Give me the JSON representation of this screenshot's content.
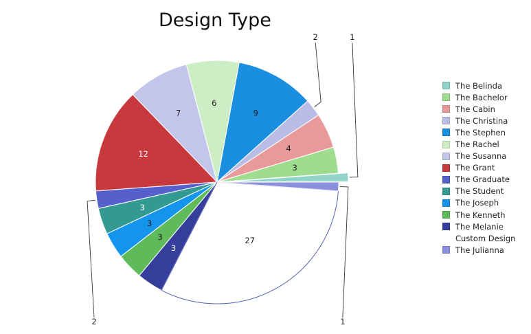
{
  "chart_data": {
    "type": "pie",
    "title": "Design Type",
    "slices": [
      {
        "label": "The Belinda",
        "value": 1,
        "color": "#8fd3c9",
        "exploded": true
      },
      {
        "label": "The Bachelor",
        "value": 3,
        "color": "#9fdc8f"
      },
      {
        "label": "The Cabin",
        "value": 4,
        "color": "#e89a9a"
      },
      {
        "label": "The Christina",
        "value": 2,
        "color": "#b9bde6"
      },
      {
        "label": "The Stephen",
        "value": 9,
        "color": "#1a8fe0"
      },
      {
        "label": "The Rachel",
        "value": 6,
        "color": "#cdeec4"
      },
      {
        "label": "The Susanna",
        "value": 7,
        "color": "#c3c6ea"
      },
      {
        "label": "The Grant",
        "value": 12,
        "color": "#c7393c"
      },
      {
        "label": "The Graduate",
        "value": 2,
        "color": "#5560cc"
      },
      {
        "label": "The Student",
        "value": 3,
        "color": "#339a92"
      },
      {
        "label": "The Joseph",
        "value": 3,
        "color": "#1594ec"
      },
      {
        "label": "The Kenneth",
        "value": 3,
        "color": "#5fba5a"
      },
      {
        "label": "The Melanie",
        "value": 3,
        "color": "#353e9a"
      },
      {
        "label": "Custom Design",
        "value": 27,
        "color": "#ffffff"
      },
      {
        "label": "The Julianna",
        "value": 1,
        "color": "#8a90dd"
      }
    ],
    "legend_position": "right"
  }
}
